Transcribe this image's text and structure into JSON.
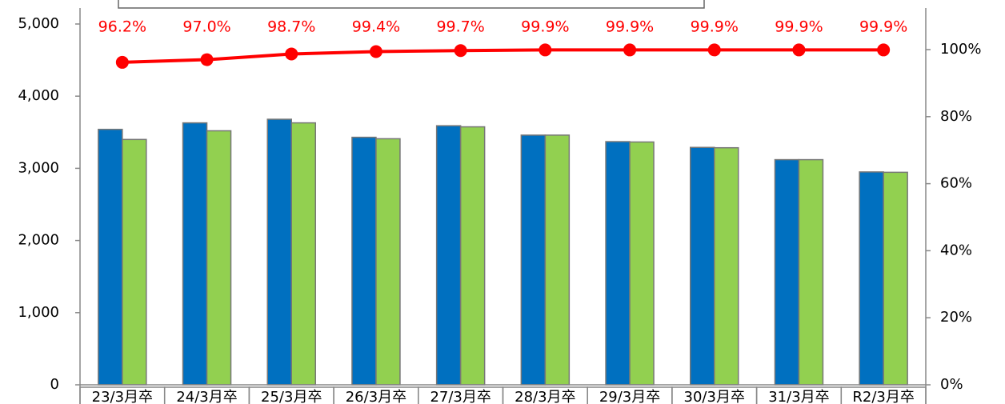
{
  "chart_data": {
    "type": "bar-line",
    "categories": [
      "23/3月卒",
      "24/3月卒",
      "25/3月卒",
      "26/3月卒",
      "27/3月卒",
      "28/3月卒",
      "29/3月卒",
      "30/3月卒",
      "31/3月卒",
      "R2/3月卒"
    ],
    "series": [
      {
        "type": "bar",
        "color": "#0070c0",
        "values": [
          3540,
          3630,
          3680,
          3430,
          3590,
          3460,
          3370,
          3290,
          3120,
          2950
        ]
      },
      {
        "type": "bar",
        "color": "#92d050",
        "values": [
          3400,
          3520,
          3630,
          3410,
          3575,
          3460,
          3365,
          3285,
          3120,
          2945
        ]
      },
      {
        "type": "line",
        "axis": "y2",
        "color": "#ff0000",
        "values": [
          96.2,
          97.0,
          98.7,
          99.4,
          99.7,
          99.9,
          99.9,
          99.9,
          99.9,
          99.9
        ],
        "value_labels": [
          "96.2%",
          "97.0%",
          "98.7%",
          "99.4%",
          "99.7%",
          "99.9%",
          "99.9%",
          "99.9%",
          "99.9%",
          "99.9%"
        ]
      }
    ],
    "ylim": [
      0,
      5000
    ],
    "yticks": [
      0,
      {
        "value": 1000,
        "label": "1,000"
      },
      {
        "value": 2000,
        "label": "2,000"
      },
      {
        "value": 3000,
        "label": "3,000"
      },
      {
        "value": 4000,
        "label": "4,000"
      },
      {
        "value": 5000,
        "label": "5,000"
      }
    ],
    "y2lim": [
      0,
      100
    ],
    "y2ticks": [
      {
        "value": 0,
        "label": "0%"
      },
      {
        "value": 20,
        "label": "20%"
      },
      {
        "value": 40,
        "label": "40%"
      },
      {
        "value": 60,
        "label": "60%"
      },
      {
        "value": 80,
        "label": "80%"
      },
      {
        "value": 100,
        "label": "100%"
      }
    ]
  }
}
